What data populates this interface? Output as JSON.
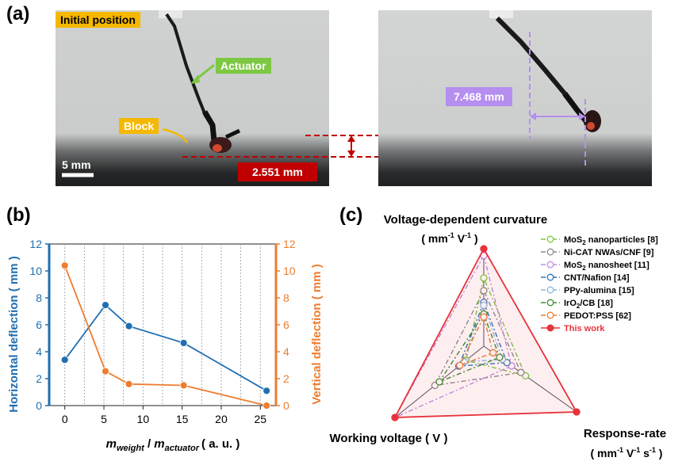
{
  "panel_labels": {
    "a": "(a)",
    "b": "(b)",
    "c": "(c)"
  },
  "panel_a": {
    "initial_label": "Initial position",
    "actuator_label": "Actuator",
    "block_label": "Block",
    "scale_label": "5 mm",
    "vertical_measure": "2.551 mm",
    "horizontal_measure": "7.468 mm",
    "colors": {
      "initial": "#f5b800",
      "actuator": "#7dc843",
      "block": "#f5b800",
      "vertical": "#c00000",
      "horizontal": "#b58ef0"
    }
  },
  "chart_data": [
    {
      "type": "line",
      "xlabel_main": "m",
      "xlabel_sub1": "weight",
      "xlabel_sep": " / ",
      "xlabel_sub2": "actuator",
      "xlabel_unit": "( a. u. )",
      "ylabel_left": "Horizontal deflection ( mm )",
      "ylabel_right": "Vertical deflection ( mm )",
      "xlim": [
        -2,
        27
      ],
      "ylim": [
        0,
        12
      ],
      "xticks": [
        "0",
        "5",
        "10",
        "15",
        "20",
        "25"
      ],
      "yticks": [
        "0",
        "2",
        "4",
        "6",
        "8",
        "10",
        "12"
      ],
      "series": [
        {
          "name": "Horizontal deflection",
          "axis": "left",
          "color": "#1f6fb2",
          "x": [
            0,
            5.2,
            8.2,
            15.2,
            25.8
          ],
          "values": [
            3.4,
            7.468,
            5.9,
            4.65,
            1.1
          ]
        },
        {
          "name": "Vertical deflection",
          "axis": "right",
          "color": "#ee7d31",
          "x": [
            0,
            5.2,
            8.2,
            15.2,
            25.8
          ],
          "values": [
            10.4,
            2.551,
            1.6,
            1.5,
            0.0
          ]
        }
      ]
    },
    {
      "type": "radar",
      "axes": [
        "Voltage-dependent curvature",
        "Working voltage ( V )",
        "Response-rate"
      ],
      "axis_units": [
        "( mm-1 V-1 )",
        "",
        "( mm-1 V-1 s-1 )"
      ],
      "top_label_line1": "Voltage-dependent curvature",
      "top_label_line2_a": "( mm",
      "top_label_line2_b": "-1",
      "top_label_line2_c": " V",
      "top_label_line2_d": "-1",
      "top_label_line2_e": " )",
      "left_label": "Working voltage ( V )",
      "right_label_line1": "Response-rate",
      "right_label_line2": "( mm-1 V-1 s-1 )",
      "legend": [
        {
          "name": "MoS2 nanoparticles [8]",
          "text_a": "MoS",
          "sub": "2",
          "text_b": " nanoparticles [8]",
          "color": "#7ac943",
          "values": [
            0.7,
            0.2,
            0.45
          ],
          "dash": "6,3,2,3"
        },
        {
          "name": "Ni-CAT NWAs/CNF [9]",
          "text_a": "Ni-CAT NWAs/CNF [9]",
          "sub": "",
          "text_b": "",
          "color": "#8c8c8c",
          "values": [
            0.57,
            0.55,
            0.4
          ],
          "dash": "6,3,2,3"
        },
        {
          "name": "MoS2 nanosheet [11]",
          "text_a": "MoS",
          "sub": "2",
          "text_b": " nanosheet [11]",
          "color": "#c08be8",
          "values": [
            0.93,
            1.0,
            0.3
          ],
          "dash": "6,3,2,3"
        },
        {
          "name": "CNT/Nafion [14]",
          "text_a": "CNT/Nafion [14]",
          "sub": "",
          "text_b": "",
          "color": "#2f73b8",
          "values": [
            0.45,
            0.28,
            0.25
          ],
          "dash": "6,3,2,3"
        },
        {
          "name": "PPy-alumina [15]",
          "text_a": "PPy-alumina [15]",
          "sub": "",
          "text_b": "",
          "color": "#87b9e0",
          "values": [
            0.42,
            0.22,
            0.2
          ],
          "dash": "6,3,2,3"
        },
        {
          "name": "IrO2/CB [18]",
          "text_a": "IrO",
          "sub": "2",
          "text_b": "/CB [18]",
          "color": "#3a8c2f",
          "values": [
            0.33,
            0.5,
            0.17
          ],
          "dash": "6,3,2,3"
        },
        {
          "name": "PEDOT:PSS [62]",
          "text_a": "PEDOT:PSS [62]",
          "sub": "",
          "text_b": "",
          "color": "#ee7d31",
          "values": [
            0.3,
            0.27,
            0.1
          ],
          "dash": "6,3,2,3"
        },
        {
          "name": "This work",
          "text_a": "This work",
          "sub": "",
          "text_b": "",
          "color": "#e8323c",
          "values": [
            1.0,
            1.0,
            1.0
          ],
          "dash": ""
        }
      ]
    }
  ]
}
